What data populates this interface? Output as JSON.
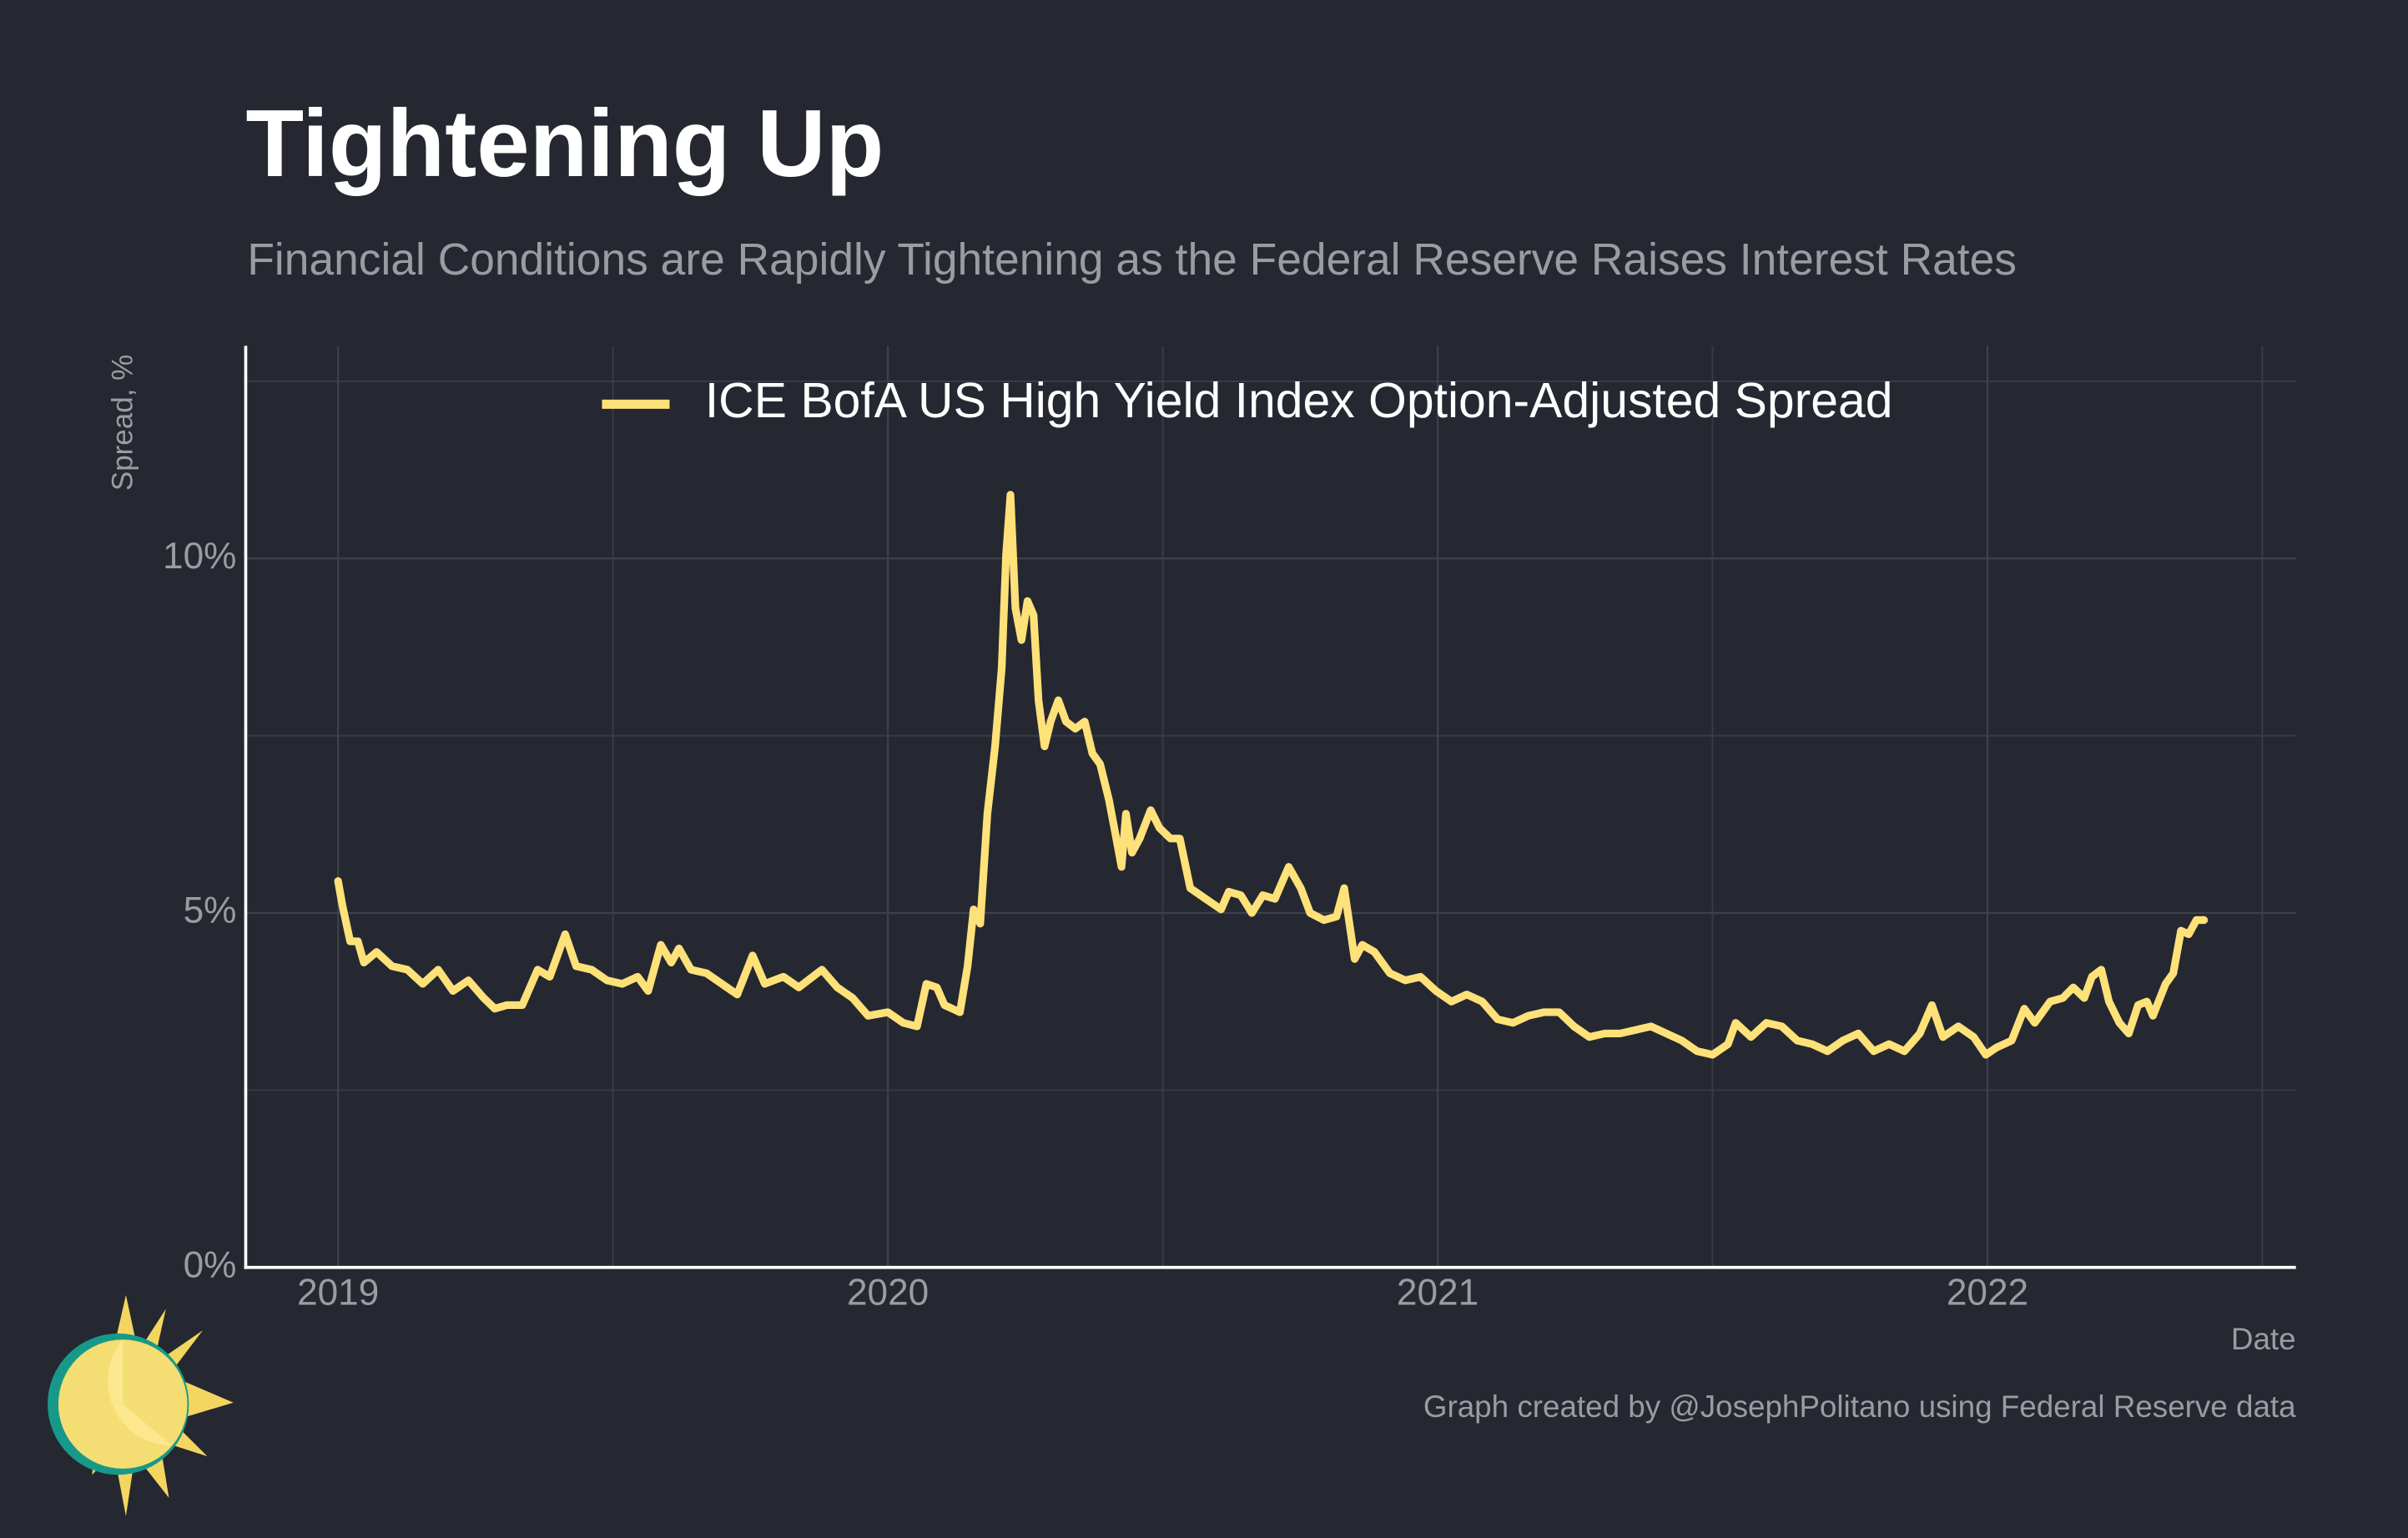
{
  "chart_data": {
    "type": "line",
    "title": "Tightening Up",
    "subtitle": "Financial Conditions are Rapidly Tightening as the Federal Reserve Raises Interest Rates",
    "y_axis_label": "Spread, %",
    "x_axis_label": "Date",
    "credit": "Graph created by @JosephPolitano using Federal Reserve data",
    "legend_position": "top",
    "grid": true,
    "xlim": [
      2018.832,
      2022.561
    ],
    "ylim": [
      0,
      13
    ],
    "xticks": [
      2019,
      2020,
      2021,
      2022
    ],
    "x_minor_grid": [
      2019.5,
      2020.5,
      2021.5,
      2022.5
    ],
    "yticks": [
      {
        "value": 0,
        "label": "0%"
      },
      {
        "value": 5,
        "label": "5%"
      },
      {
        "value": 10,
        "label": "10%"
      }
    ],
    "y_minor_grid": [
      2.5,
      7.5,
      12.5
    ],
    "series": [
      {
        "name": "ICE BofA US High Yield Index Option-Adjusted Spread",
        "color": "#ffe17a",
        "x": [
          2019.0,
          2019.008,
          2019.022,
          2019.036,
          2019.047,
          2019.07,
          2019.098,
          2019.126,
          2019.154,
          2019.182,
          2019.209,
          2019.237,
          2019.265,
          2019.285,
          2019.307,
          2019.335,
          2019.363,
          2019.385,
          2019.413,
          2019.433,
          2019.461,
          2019.489,
          2019.517,
          2019.545,
          2019.564,
          2019.587,
          2019.606,
          2019.62,
          2019.642,
          2019.67,
          2019.698,
          2019.726,
          2019.754,
          2019.776,
          2019.81,
          2019.838,
          2019.88,
          2019.908,
          2019.936,
          2019.964,
          2020.0,
          2020.028,
          2020.053,
          2020.07,
          2020.089,
          2020.103,
          2020.131,
          2020.145,
          2020.156,
          2020.168,
          2020.181,
          2020.195,
          2020.207,
          2020.215,
          2020.223,
          2020.232,
          2020.243,
          2020.254,
          2020.265,
          2020.274,
          2020.285,
          2020.296,
          2020.31,
          2020.324,
          2020.341,
          2020.358,
          2020.372,
          2020.386,
          2020.402,
          2020.413,
          2020.425,
          2020.433,
          2020.444,
          2020.458,
          2020.478,
          2020.494,
          2020.514,
          2020.531,
          2020.55,
          2020.578,
          2020.606,
          2020.62,
          2020.642,
          2020.662,
          2020.682,
          2020.704,
          2020.729,
          2020.751,
          2020.768,
          2020.793,
          2020.816,
          2020.83,
          2020.849,
          2020.863,
          2020.885,
          2020.913,
          2020.941,
          2020.969,
          2020.997,
          2021.025,
          2021.053,
          2021.081,
          2021.109,
          2021.137,
          2021.165,
          2021.193,
          2021.221,
          2021.248,
          2021.276,
          2021.304,
          2021.332,
          2021.36,
          2021.388,
          2021.416,
          2021.444,
          2021.472,
          2021.5,
          2021.528,
          2021.542,
          2021.57,
          2021.598,
          2021.626,
          2021.654,
          2021.681,
          2021.709,
          2021.737,
          2021.765,
          2021.793,
          2021.821,
          2021.849,
          2021.877,
          2021.899,
          2021.919,
          2021.947,
          2021.975,
          2021.997,
          2022.016,
          2022.044,
          2022.067,
          2022.086,
          2022.114,
          2022.137,
          2022.156,
          2022.176,
          2022.19,
          2022.207,
          2022.221,
          2022.24,
          2022.257,
          2022.274,
          2022.29,
          2022.301,
          2022.324,
          2022.338,
          2022.352,
          2022.366,
          2022.38,
          2022.394
        ],
        "values": [
          5.45,
          5.1,
          4.6,
          4.6,
          4.3,
          4.45,
          4.25,
          4.2,
          4.0,
          4.2,
          3.9,
          4.05,
          3.8,
          3.65,
          3.7,
          3.7,
          4.2,
          4.1,
          4.7,
          4.25,
          4.2,
          4.05,
          4.0,
          4.1,
          3.9,
          4.55,
          4.3,
          4.5,
          4.2,
          4.15,
          4.0,
          3.85,
          4.4,
          4.0,
          4.1,
          3.95,
          4.2,
          3.95,
          3.8,
          3.55,
          3.6,
          3.45,
          3.4,
          4.0,
          3.95,
          3.7,
          3.6,
          4.25,
          5.05,
          4.85,
          6.4,
          7.35,
          8.45,
          10.05,
          10.9,
          9.3,
          8.85,
          9.4,
          9.2,
          8.0,
          7.35,
          7.7,
          8.0,
          7.7,
          7.6,
          7.7,
          7.25,
          7.1,
          6.6,
          6.15,
          5.65,
          6.4,
          5.85,
          6.05,
          6.45,
          6.2,
          6.05,
          6.05,
          5.35,
          5.2,
          5.05,
          5.3,
          5.25,
          5.0,
          5.25,
          5.2,
          5.65,
          5.35,
          5.0,
          4.9,
          4.95,
          5.35,
          4.35,
          4.55,
          4.45,
          4.15,
          4.05,
          4.1,
          3.9,
          3.75,
          3.85,
          3.75,
          3.5,
          3.45,
          3.55,
          3.6,
          3.6,
          3.4,
          3.25,
          3.3,
          3.3,
          3.35,
          3.4,
          3.3,
          3.2,
          3.05,
          3.0,
          3.15,
          3.45,
          3.25,
          3.45,
          3.4,
          3.2,
          3.15,
          3.05,
          3.2,
          3.3,
          3.05,
          3.15,
          3.05,
          3.3,
          3.7,
          3.25,
          3.4,
          3.25,
          3.0,
          3.1,
          3.2,
          3.65,
          3.45,
          3.75,
          3.8,
          3.95,
          3.8,
          4.1,
          4.2,
          3.75,
          3.45,
          3.3,
          3.7,
          3.75,
          3.55,
          4.0,
          4.15,
          4.75,
          4.7,
          4.9,
          4.9
        ]
      }
    ]
  }
}
